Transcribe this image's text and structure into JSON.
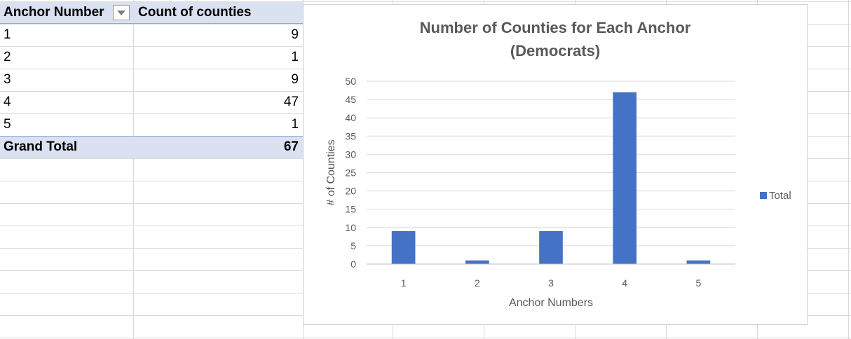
{
  "pivot": {
    "header_row_label": "Anchor Number",
    "header_value_label": "Count of counties",
    "rows": [
      {
        "label": "1",
        "value": "9"
      },
      {
        "label": "2",
        "value": "1"
      },
      {
        "label": "3",
        "value": "9"
      },
      {
        "label": "4",
        "value": "47"
      },
      {
        "label": "5",
        "value": "1"
      }
    ],
    "grand_total_label": "Grand Total",
    "grand_total_value": "67",
    "filter_icon": "chevron-down-icon"
  },
  "chart_data": {
    "type": "bar",
    "title_line1": "Number of Counties for Each Anchor",
    "title_line2": "(Democrats)",
    "categories": [
      "1",
      "2",
      "3",
      "4",
      "5"
    ],
    "series": [
      {
        "name": "Total",
        "values": [
          9,
          1,
          9,
          47,
          1
        ],
        "color": "#4472c4"
      }
    ],
    "xlabel": "Anchor Numbers",
    "ylabel": "# of Counties",
    "ylim": [
      0,
      50
    ],
    "yticks": [
      "0",
      "5",
      "10",
      "15",
      "20",
      "25",
      "30",
      "35",
      "40",
      "45",
      "50"
    ],
    "grid": true,
    "legend_position": "right"
  }
}
